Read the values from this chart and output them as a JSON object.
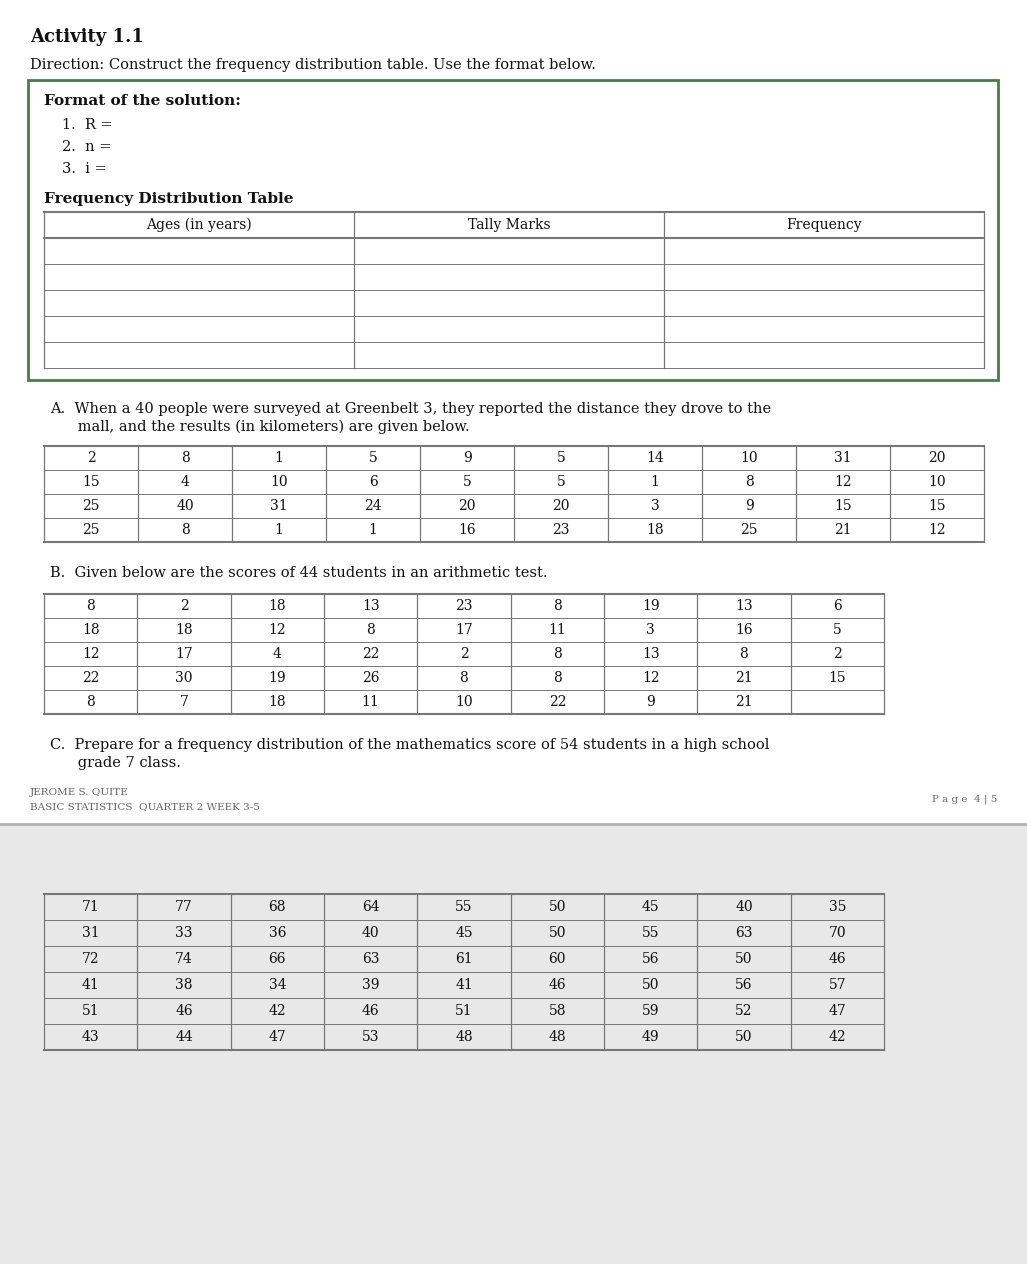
{
  "title": "Activity 1.1",
  "direction": "Direction: Construct the frequency distribution table. Use the format below.",
  "format_box_title": "Format of the solution:",
  "format_items": [
    "1.  R =",
    "2.  n =",
    "3.  i ="
  ],
  "freq_table_title": "Frequency Distribution Table",
  "freq_table_headers": [
    "Ages (in years)",
    "Tally Marks",
    "Frequency"
  ],
  "freq_table_rows": 5,
  "section_A_text_1": "A.  When a 40 people were surveyed at Greenbelt 3, they reported the distance they drove to the",
  "section_A_text_2": "      mall, and the results (in kilometers) are given below.",
  "table_A": [
    [
      2,
      8,
      1,
      5,
      9,
      5,
      14,
      10,
      31,
      20
    ],
    [
      15,
      4,
      10,
      6,
      5,
      5,
      1,
      8,
      12,
      10
    ],
    [
      25,
      40,
      31,
      24,
      20,
      20,
      3,
      9,
      15,
      15
    ],
    [
      25,
      8,
      1,
      1,
      16,
      23,
      18,
      25,
      21,
      12
    ]
  ],
  "section_B_text": "B.  Given below are the scores of 44 students in an arithmetic test.",
  "table_B": [
    [
      8,
      2,
      18,
      13,
      23,
      8,
      19,
      13,
      6
    ],
    [
      18,
      18,
      12,
      8,
      17,
      11,
      3,
      16,
      5
    ],
    [
      12,
      17,
      4,
      22,
      2,
      8,
      13,
      8,
      2
    ],
    [
      22,
      30,
      19,
      26,
      8,
      8,
      12,
      21,
      15
    ],
    [
      8,
      7,
      18,
      11,
      10,
      22,
      9,
      21,
      ""
    ]
  ],
  "section_C_text_1": "C.  Prepare for a frequency distribution of the mathematics score of 54 students in a high school",
  "section_C_text_2": "      grade 7 class.",
  "footer_left1": "JEROME S. QUITE",
  "footer_left2": "BASIC STATISTICS  QUARTER 2 WEEK 3-5",
  "footer_right": "P a g e  4 | 5",
  "table_C": [
    [
      71,
      77,
      68,
      64,
      55,
      50,
      45,
      40,
      35
    ],
    [
      31,
      33,
      36,
      40,
      45,
      50,
      55,
      63,
      70
    ],
    [
      72,
      74,
      66,
      63,
      61,
      60,
      56,
      50,
      46
    ],
    [
      41,
      38,
      34,
      39,
      41,
      46,
      50,
      56,
      57
    ],
    [
      51,
      46,
      42,
      46,
      51,
      58,
      59,
      52,
      47
    ],
    [
      43,
      44,
      47,
      53,
      48,
      48,
      49,
      50,
      42
    ]
  ],
  "page_bg": "#ffffff",
  "bottom_bg": "#e8e8e8",
  "box_border_color": "#4a7c4a",
  "table_border_color": "#777777",
  "text_color": "#111111",
  "footer_color": "#666666"
}
